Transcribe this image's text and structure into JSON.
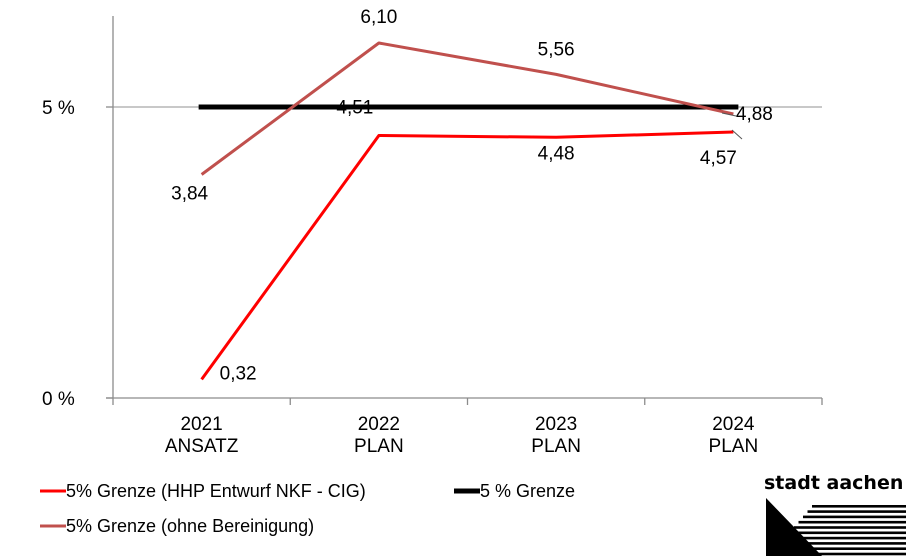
{
  "chart_data": {
    "type": "line",
    "categories": [
      [
        "2021",
        "ANSATZ"
      ],
      [
        "2022",
        "PLAN"
      ],
      [
        "2023",
        "PLAN"
      ],
      [
        "2024",
        "PLAN"
      ]
    ],
    "y_ticks": [
      {
        "value": 0,
        "label": "0  %"
      },
      {
        "value": 5,
        "label": "5  %"
      }
    ],
    "ylim": [
      0,
      7
    ],
    "series": [
      {
        "name": "5% Grenze  (HHP Entwurf NKF - CIG)",
        "color": "#ff0000",
        "values": [
          0.32,
          4.51,
          4.48,
          4.57
        ],
        "labels": [
          "0,32",
          "4,51",
          "4,48",
          "4,57"
        ]
      },
      {
        "name": "5 % Grenze",
        "color": "#000000",
        "values": [
          5,
          5,
          5,
          5
        ],
        "labels": []
      },
      {
        "name": "5% Grenze (ohne Bereinigung)",
        "color": "#c0504d",
        "values": [
          3.84,
          6.1,
          5.56,
          4.88
        ],
        "labels": [
          "3,84",
          "6,10",
          "5,56",
          "4,88"
        ]
      }
    ],
    "gridlines": [
      5
    ],
    "legend_position": "bottom-left"
  },
  "logo": {
    "text": "stadt aachen"
  }
}
